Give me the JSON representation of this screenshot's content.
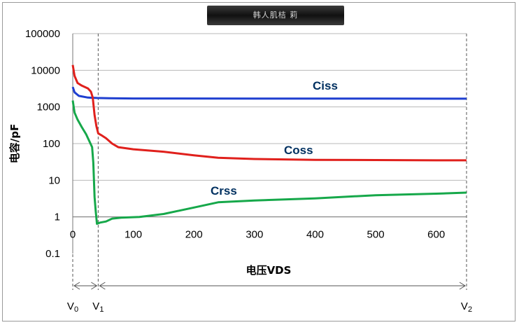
{
  "chart_data": {
    "type": "line",
    "title": "韩人肌桔 莉",
    "xlabel": "电压VDS",
    "ylabel": "电容/pF",
    "xscale": "linear",
    "yscale": "log",
    "xlim": [
      0,
      650
    ],
    "ylim": [
      0.1,
      100000
    ],
    "grid": "horizontal",
    "x_ticks": [
      "0",
      "100",
      "200",
      "300",
      "400",
      "500",
      "600"
    ],
    "y_ticks": [
      "100000",
      "10000",
      "1000",
      "100",
      "10",
      "1",
      "0.1"
    ],
    "series": [
      {
        "name": "Ciss",
        "color": "#1f3fd0",
        "points": [
          [
            0,
            3500
          ],
          [
            3,
            2500
          ],
          [
            10,
            2000
          ],
          [
            25,
            1800
          ],
          [
            40,
            1750
          ],
          [
            60,
            1720
          ],
          [
            100,
            1700
          ],
          [
            300,
            1690
          ],
          [
            500,
            1690
          ],
          [
            650,
            1680
          ]
        ]
      },
      {
        "name": "Coss",
        "color": "#e0201c",
        "points": [
          [
            0,
            14000
          ],
          [
            3,
            7000
          ],
          [
            8,
            4500
          ],
          [
            15,
            3800
          ],
          [
            25,
            3200
          ],
          [
            30,
            2600
          ],
          [
            33,
            1800
          ],
          [
            36,
            600
          ],
          [
            39,
            300
          ],
          [
            42,
            190
          ],
          [
            47,
            170
          ],
          [
            55,
            140
          ],
          [
            65,
            100
          ],
          [
            75,
            80
          ],
          [
            100,
            70
          ],
          [
            150,
            60
          ],
          [
            200,
            48
          ],
          [
            240,
            41
          ],
          [
            300,
            38
          ],
          [
            400,
            36
          ],
          [
            500,
            35.5
          ],
          [
            600,
            35
          ],
          [
            650,
            35
          ]
        ]
      },
      {
        "name": "Crss",
        "color": "#16a84a",
        "points": [
          [
            0,
            1500
          ],
          [
            3,
            700
          ],
          [
            8,
            450
          ],
          [
            15,
            280
          ],
          [
            22,
            180
          ],
          [
            28,
            110
          ],
          [
            32,
            80
          ],
          [
            34,
            30
          ],
          [
            36,
            3.5
          ],
          [
            38,
            1.4
          ],
          [
            40,
            0.65
          ],
          [
            45,
            0.7
          ],
          [
            55,
            0.75
          ],
          [
            65,
            0.9
          ],
          [
            80,
            0.95
          ],
          [
            110,
            1.0
          ],
          [
            150,
            1.2
          ],
          [
            200,
            1.8
          ],
          [
            240,
            2.5
          ],
          [
            300,
            2.8
          ],
          [
            400,
            3.2
          ],
          [
            500,
            3.9
          ],
          [
            600,
            4.3
          ],
          [
            650,
            4.6
          ]
        ]
      }
    ],
    "markers": [
      {
        "label": "V",
        "sub": "0",
        "x": 0
      },
      {
        "label": "V",
        "sub": "1",
        "x": 42
      },
      {
        "label": "V",
        "sub": "2",
        "x": 650
      }
    ]
  }
}
